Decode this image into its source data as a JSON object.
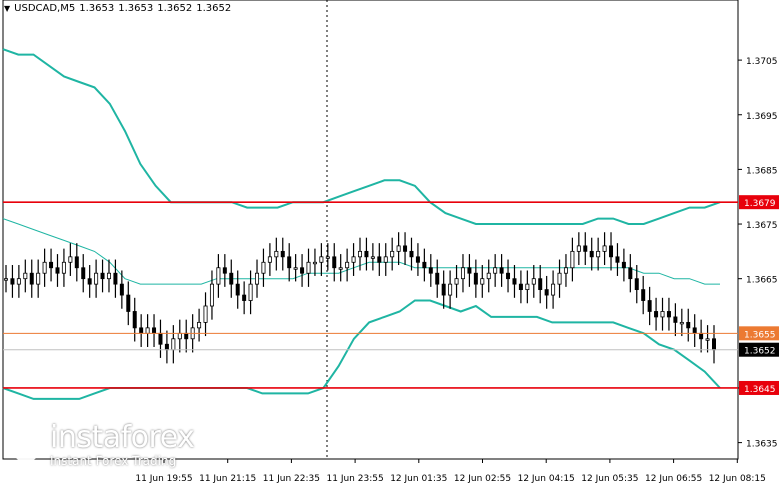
{
  "header": {
    "symbol": "USDCAD,M5",
    "values": [
      "1.3653",
      "1.3653",
      "1.3652",
      "1.3652"
    ]
  },
  "colors": {
    "band": "#1fb5a3",
    "mid": "#1fb5a3",
    "level_red": "#e8000b",
    "level_orange": "#ec7a32",
    "current": "#c0c0c0",
    "candle": "#000000"
  },
  "brand": {
    "name": "instaforex",
    "tagline": "Instant Forex Trading"
  },
  "chart_data": {
    "type": "candlestick",
    "instrument": "USDCAD",
    "timeframe": "M5",
    "ylim": [
      1.3632,
      1.3716
    ],
    "y_ticks": [
      "1.3705",
      "1.3695",
      "1.3685",
      "1.3675",
      "1.3665",
      "1.3645",
      "1.3635"
    ],
    "x_ticks": [
      "11 Jun 19:55",
      "11 Jun 21:15",
      "11 Jun 22:35",
      "11 Jun 23:55",
      "12 Jun 01:35",
      "12 Jun 02:55",
      "12 Jun 04:15",
      "12 Jun 05:35",
      "12 Jun 06:55",
      "12 Jun 08:15"
    ],
    "levels": [
      {
        "label": "1.3679",
        "value": 1.3679,
        "color": "#e8000b"
      },
      {
        "label": "1.3655",
        "value": 1.3655,
        "color": "#ec7a32"
      },
      {
        "label": "1.3645",
        "value": 1.3645,
        "color": "#e8000b"
      }
    ],
    "current_price": {
      "label": "1.3652",
      "value": 1.3652
    },
    "close": [
      1.3665,
      1.3664,
      1.3665,
      1.3666,
      1.3664,
      1.3666,
      1.3668,
      1.3667,
      1.3666,
      1.3668,
      1.3669,
      1.3667,
      1.3665,
      1.3664,
      1.3666,
      1.3665,
      1.3666,
      1.3664,
      1.3662,
      1.3659,
      1.3656,
      1.3655,
      1.3656,
      1.3655,
      1.3653,
      1.3652,
      1.3654,
      1.3655,
      1.3654,
      1.3656,
      1.3657,
      1.366,
      1.3664,
      1.3667,
      1.3666,
      1.3664,
      1.3662,
      1.3661,
      1.3664,
      1.3666,
      1.3668,
      1.3669,
      1.367,
      1.3669,
      1.3667,
      1.3667,
      1.3666,
      1.3668,
      1.3668,
      1.3669,
      1.3669,
      1.3667,
      1.3667,
      1.3668,
      1.3669,
      1.367,
      1.3669,
      1.3669,
      1.3668,
      1.3669,
      1.367,
      1.3671,
      1.367,
      1.3669,
      1.3668,
      1.3667,
      1.3666,
      1.3664,
      1.3662,
      1.3664,
      1.3665,
      1.3667,
      1.3666,
      1.3664,
      1.3665,
      1.3666,
      1.3667,
      1.3666,
      1.3665,
      1.3664,
      1.3663,
      1.3664,
      1.3665,
      1.3663,
      1.3662,
      1.3664,
      1.3666,
      1.3667,
      1.367,
      1.3671,
      1.367,
      1.3669,
      1.367,
      1.3671,
      1.3669,
      1.3668,
      1.3667,
      1.3665,
      1.3663,
      1.3661,
      1.3659,
      1.3658,
      1.3659,
      1.3658,
      1.3657,
      1.3657,
      1.3656,
      1.3655,
      1.3654,
      1.3654,
      1.3652
    ],
    "bands": {
      "upper": [
        1.3707,
        1.3706,
        1.3706,
        1.3704,
        1.3702,
        1.3701,
        1.37,
        1.3697,
        1.3692,
        1.3686,
        1.3682,
        1.3679,
        1.3679,
        1.3679,
        1.3679,
        1.3679,
        1.3678,
        1.3678,
        1.3678,
        1.3679,
        1.3679,
        1.3679,
        1.368,
        1.3681,
        1.3682,
        1.3683,
        1.3683,
        1.3682,
        1.3679,
        1.3677,
        1.3676,
        1.3675,
        1.3675,
        1.3675,
        1.3675,
        1.3675,
        1.3675,
        1.3675,
        1.3675,
        1.3676,
        1.3676,
        1.3675,
        1.3675,
        1.3676,
        1.3677,
        1.3678,
        1.3678,
        1.3679
      ],
      "middle": [
        1.3676,
        1.3675,
        1.3674,
        1.3673,
        1.3672,
        1.3671,
        1.367,
        1.3668,
        1.3665,
        1.3664,
        1.3664,
        1.3664,
        1.3664,
        1.3664,
        1.3665,
        1.3665,
        1.3665,
        1.3665,
        1.3665,
        1.3665,
        1.3666,
        1.3666,
        1.3666,
        1.3667,
        1.3668,
        1.3668,
        1.3668,
        1.3667,
        1.3667,
        1.3667,
        1.3667,
        1.3667,
        1.3667,
        1.3667,
        1.3667,
        1.3667,
        1.3667,
        1.3667,
        1.3667,
        1.3667,
        1.3667,
        1.3667,
        1.3666,
        1.3666,
        1.3665,
        1.3665,
        1.3664,
        1.3664
      ],
      "lower": [
        1.3645,
        1.3644,
        1.3643,
        1.3643,
        1.3643,
        1.3643,
        1.3644,
        1.3645,
        1.3645,
        1.3645,
        1.3645,
        1.3645,
        1.3645,
        1.3645,
        1.3645,
        1.3645,
        1.3645,
        1.3644,
        1.3644,
        1.3644,
        1.3644,
        1.3645,
        1.3649,
        1.3654,
        1.3657,
        1.3658,
        1.3659,
        1.3661,
        1.3661,
        1.366,
        1.3659,
        1.366,
        1.3658,
        1.3658,
        1.3658,
        1.3658,
        1.3657,
        1.3657,
        1.3657,
        1.3657,
        1.3657,
        1.3656,
        1.3655,
        1.3653,
        1.3652,
        1.365,
        1.3648,
        1.3645
      ]
    }
  }
}
